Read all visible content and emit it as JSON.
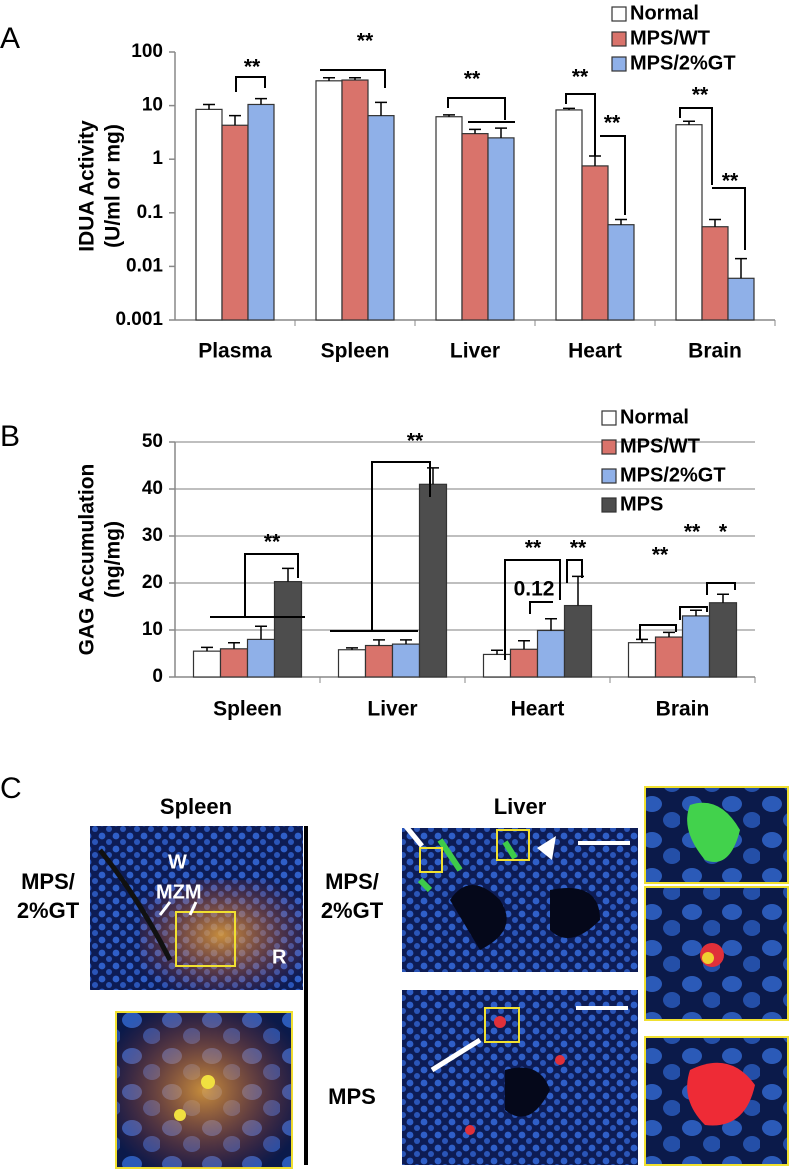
{
  "chart_data": [
    {
      "type": "bar",
      "label": "A",
      "ylabel": [
        "IDUA Activity",
        "(U/ml or mg)"
      ],
      "log_scale": true,
      "categories": [
        "Plasma",
        "Spleen",
        "Liver",
        "Heart",
        "Brain"
      ],
      "series": [
        {
          "name": "Normal",
          "color": "#ffffff",
          "values": [
            8.5,
            29,
            6.2,
            8.3,
            4.4
          ],
          "errors": [
            2,
            4,
            0.5,
            0.6,
            0.7
          ]
        },
        {
          "name": "MPS/WT",
          "color": "#d9736b",
          "values": [
            4.3,
            30,
            3.0,
            0.75,
            0.055
          ],
          "errors": [
            2.2,
            3,
            0.6,
            0.4,
            0.02
          ]
        },
        {
          "name": "MPS/2%GT",
          "color": "#8fb0e8",
          "values": [
            10.5,
            6.5,
            2.5,
            0.06,
            0.006
          ],
          "errors": [
            3,
            5,
            1.3,
            0.015,
            0.008
          ]
        }
      ],
      "ylim": [
        0.001,
        100
      ],
      "yticks": [
        0.001,
        0.01,
        0.1,
        1,
        10,
        100
      ],
      "grid": false,
      "legend": "top-right",
      "annotations": [
        "**",
        "**",
        "**",
        "**",
        "**",
        "**",
        "**"
      ]
    },
    {
      "type": "bar",
      "label": "B",
      "ylabel": [
        "GAG Accumulation",
        "(ng/mg)"
      ],
      "log_scale": false,
      "categories": [
        "Spleen",
        "Liver",
        "Heart",
        "Brain"
      ],
      "series": [
        {
          "name": "Normal",
          "color": "#ffffff",
          "values": [
            5.5,
            5.8,
            4.8,
            7.3
          ],
          "errors": [
            0.8,
            0.4,
            0.9,
            0.7
          ]
        },
        {
          "name": "MPS/WT",
          "color": "#d9736b",
          "values": [
            6,
            6.7,
            5.9,
            8.5
          ],
          "errors": [
            1.3,
            1.2,
            1.8,
            1
          ]
        },
        {
          "name": "MPS/2%GT",
          "color": "#8fb0e8",
          "values": [
            8,
            7,
            9.9,
            13
          ],
          "errors": [
            2.8,
            0.9,
            2.5,
            1.2
          ]
        },
        {
          "name": "MPS",
          "color": "#4d4d4d",
          "values": [
            20.3,
            41,
            15.2,
            15.8
          ],
          "errors": [
            2.8,
            3.5,
            6.2,
            1.8
          ]
        }
      ],
      "ylim": [
        0,
        50
      ],
      "yticks": [
        0,
        10,
        20,
        30,
        40,
        50
      ],
      "grid": true,
      "legend": "top-right",
      "annotations": [
        "**",
        "**",
        "**",
        "0.12",
        "**",
        "**",
        "**",
        "*"
      ]
    }
  ],
  "panel_c": {
    "label": "C",
    "spleen_title": "Spleen",
    "liver_title": "Liver",
    "row_label_gt": [
      "MPS/",
      "2%GT"
    ],
    "row_label_gt_liver": [
      "MPS/",
      "2%GT"
    ],
    "row_label_mps": "MPS",
    "spleen_marks": [
      "W",
      "MZM",
      "R"
    ]
  }
}
